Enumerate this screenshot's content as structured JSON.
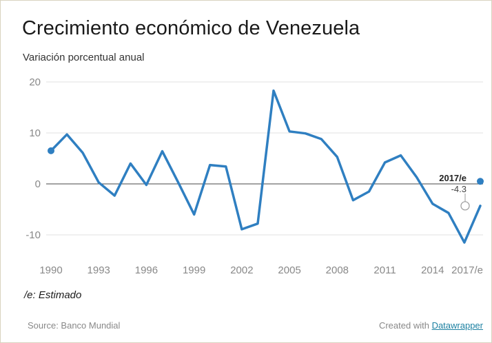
{
  "header": {
    "title": "Crecimiento económico de Venezuela",
    "subtitle": "Variación porcentual anual"
  },
  "footer": {
    "note": "/e: Estimado",
    "source": "Source: Banco Mundial",
    "created_with": "Created with ",
    "link_label": "Datawrapper"
  },
  "colors": {
    "line": "#2f7fc1",
    "grid": "#e0e0e0",
    "zero_line": "#444444",
    "text": "#333333",
    "tick_text": "#888888"
  },
  "chart_data": {
    "type": "line",
    "title": "Crecimiento económico de Venezuela",
    "subtitle": "Variación porcentual anual",
    "x": [
      "1990",
      "1991",
      "1992",
      "1993",
      "1994",
      "1995",
      "1996",
      "1997",
      "1998",
      "1999",
      "2000",
      "2001",
      "2002",
      "2003",
      "2004",
      "2005",
      "2006",
      "2007",
      "2008",
      "2009",
      "2010",
      "2011",
      "2012",
      "2013",
      "2014",
      "2015",
      "2016",
      "2017/e"
    ],
    "series": [
      {
        "values": [
          6.5,
          9.7,
          6.1,
          0.3,
          -2.3,
          4.0,
          -0.2,
          6.4,
          0.3,
          -6.0,
          3.7,
          3.4,
          -8.9,
          -7.8,
          18.3,
          10.3,
          9.9,
          8.8,
          5.3,
          -3.2,
          -1.5,
          4.2,
          5.6,
          1.3,
          -3.9,
          -5.7,
          -11.5,
          -4.3
        ]
      }
    ],
    "ylim": [
      -14,
      21
    ],
    "yticks": [
      20,
      10,
      0,
      -10
    ],
    "xtick_labels": [
      "1990",
      "1993",
      "1996",
      "1999",
      "2002",
      "2005",
      "2008",
      "2011",
      "2014",
      "2017/e"
    ],
    "grid": true,
    "annotation": {
      "label": "2017/e",
      "value": "-4.3"
    }
  }
}
